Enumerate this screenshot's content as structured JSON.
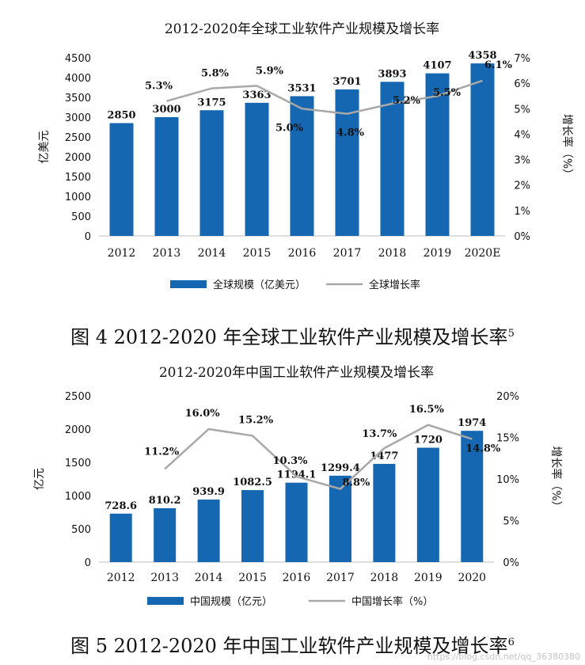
{
  "chart_data": [
    {
      "type": "bar",
      "title": "2012-2020年全球工业软件产业规模及增长率",
      "categories": [
        "2012",
        "2013",
        "2014",
        "2015",
        "2016",
        "2017",
        "2018",
        "2019",
        "2020E"
      ],
      "series": [
        {
          "name": "全球规模（亿美元）",
          "type": "bar",
          "axis": "left",
          "values": [
            2850,
            3000,
            3175,
            3363,
            3531,
            3701,
            3893,
            4107,
            4358
          ]
        },
        {
          "name": "全球增长率",
          "type": "line",
          "axis": "right",
          "values": [
            null,
            5.3,
            5.8,
            5.9,
            5.0,
            4.8,
            5.2,
            5.5,
            6.1
          ]
        }
      ],
      "bar_labels": [
        "2850",
        "3000",
        "3175",
        "3363",
        "3531",
        "3701",
        "3893",
        "4107",
        "4358"
      ],
      "line_labels": [
        "",
        "5.3%",
        "5.8%",
        "5.9%",
        "5.0%",
        "4.8%",
        "5.2%",
        "5.5%",
        "6.1%"
      ],
      "ylabel": "亿美元",
      "y2label": "增长率（%）",
      "ylim": [
        0,
        4500
      ],
      "yticks": [
        "0",
        "500",
        "1000",
        "1500",
        "2000",
        "2500",
        "3000",
        "3500",
        "4000",
        "4500"
      ],
      "y2lim": [
        0,
        7
      ],
      "y2ticks": [
        "0%",
        "1%",
        "2%",
        "3%",
        "4%",
        "5%",
        "6%",
        "7%"
      ],
      "legend": "bottom",
      "grid": false
    },
    {
      "type": "bar",
      "title": "2012-2020年中国工业软件产业规模及增长率",
      "categories": [
        "2012",
        "2013",
        "2014",
        "2015",
        "2016",
        "2017",
        "2018",
        "2019",
        "2020"
      ],
      "series": [
        {
          "name": "中国规模（亿元）",
          "type": "bar",
          "axis": "left",
          "values": [
            728.6,
            810.2,
            939.9,
            1082.5,
            1194.1,
            1299.4,
            1477,
            1720,
            1974
          ]
        },
        {
          "name": "中国增长率（%）",
          "type": "line",
          "axis": "right",
          "values": [
            null,
            11.2,
            16.0,
            15.2,
            10.3,
            8.8,
            13.7,
            16.5,
            14.8
          ]
        }
      ],
      "bar_labels": [
        "728.6",
        "810.2",
        "939.9",
        "1082.5",
        "1194.1",
        "1299.4",
        "1477",
        "1720",
        "1974"
      ],
      "line_labels": [
        "",
        "11.2%",
        "16.0%",
        "15.2%",
        "10.3%",
        "8.8%",
        "13.7%",
        "16.5%",
        "14.8%"
      ],
      "ylabel": "亿元",
      "y2label": "增长率（%）",
      "ylim": [
        0,
        2500
      ],
      "yticks": [
        "0",
        "500",
        "1000",
        "1500",
        "2000",
        "2500"
      ],
      "y2lim": [
        0,
        20
      ],
      "y2ticks": [
        "0%",
        "5%",
        "10%",
        "15%",
        "20%"
      ],
      "legend": "bottom",
      "grid": false
    }
  ],
  "captions": {
    "fig4": "图 4 2012-2020 年全球工业软件产业规模及增长率",
    "fig4_sup": "5",
    "fig5": "图 5 2012-2020 年中国工业软件产业规模及增长率",
    "fig5_sup": "6"
  },
  "colors": {
    "bar": "#1467b0",
    "line": "#a8a8a8",
    "text": "#111111"
  },
  "watermark": "https://blog.csdn.net/qq_36380380"
}
